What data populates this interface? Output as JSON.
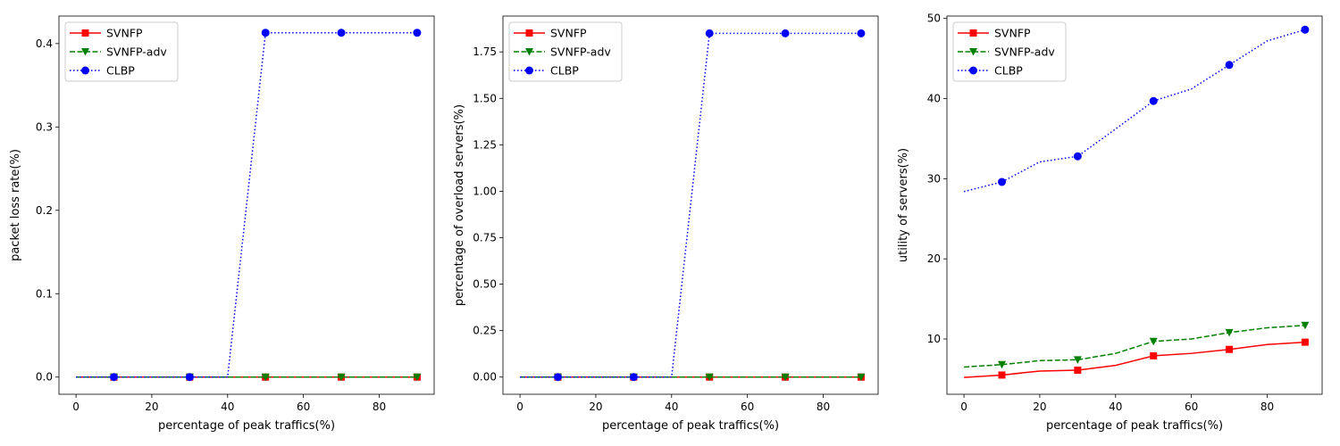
{
  "chart_data": [
    {
      "type": "line",
      "xlabel": "percentage of peak traffics(%)",
      "ylabel": "packet loss rate(%)",
      "xlim": [
        -4.5,
        94.5
      ],
      "ylim": [
        -0.0206,
        0.433
      ],
      "xticks": [
        0,
        20,
        40,
        60,
        80
      ],
      "yticks": [
        0.0,
        0.1,
        0.2,
        0.3,
        0.4
      ],
      "ytick_labels": [
        "0.0",
        "0.1",
        "0.2",
        "0.3",
        "0.4"
      ],
      "legend_position": "top-left",
      "grid": false,
      "series": [
        {
          "name": "SVNFP",
          "color": "#ff0000",
          "dash": "solid",
          "marker": "square",
          "x": [
            0,
            10,
            20,
            30,
            40,
            50,
            60,
            70,
            80,
            90
          ],
          "y": [
            0,
            0,
            0,
            0,
            0,
            0,
            0,
            0,
            0,
            0
          ]
        },
        {
          "name": "SVNFP-adv",
          "color": "#008000",
          "dash": "dashed",
          "marker": "triangle-down",
          "x": [
            0,
            10,
            20,
            30,
            40,
            50,
            60,
            70,
            80,
            90
          ],
          "y": [
            0,
            0,
            0,
            0,
            0,
            0,
            0,
            0,
            0,
            0
          ]
        },
        {
          "name": "CLBP",
          "color": "#0000ff",
          "dash": "dotted",
          "marker": "circle",
          "x": [
            0,
            10,
            20,
            30,
            40,
            50,
            60,
            70,
            80,
            90
          ],
          "y": [
            0,
            0,
            0,
            0,
            0,
            0.413,
            0.413,
            0.413,
            0.413,
            0.413
          ]
        }
      ],
      "marker_x": [
        10,
        30,
        50,
        70,
        90
      ]
    },
    {
      "type": "line",
      "xlabel": "percentage of peak traffics(%)",
      "ylabel": "percentage of overload servers(%)",
      "xlim": [
        -4.5,
        94.5
      ],
      "ylim": [
        -0.0925,
        1.943
      ],
      "xticks": [
        0,
        20,
        40,
        60,
        80
      ],
      "yticks": [
        0.0,
        0.25,
        0.5,
        0.75,
        1.0,
        1.25,
        1.5,
        1.75
      ],
      "ytick_labels": [
        "0.00",
        "0.25",
        "0.50",
        "0.75",
        "1.00",
        "1.25",
        "1.50",
        "1.75"
      ],
      "legend_position": "top-left",
      "grid": false,
      "series": [
        {
          "name": "SVNFP",
          "color": "#ff0000",
          "dash": "solid",
          "marker": "square",
          "x": [
            0,
            10,
            20,
            30,
            40,
            50,
            60,
            70,
            80,
            90
          ],
          "y": [
            0,
            0,
            0,
            0,
            0,
            0,
            0,
            0,
            0,
            0
          ]
        },
        {
          "name": "SVNFP-adv",
          "color": "#008000",
          "dash": "dashed",
          "marker": "triangle-down",
          "x": [
            0,
            10,
            20,
            30,
            40,
            50,
            60,
            70,
            80,
            90
          ],
          "y": [
            0,
            0,
            0,
            0,
            0,
            0,
            0,
            0,
            0,
            0
          ]
        },
        {
          "name": "CLBP",
          "color": "#0000ff",
          "dash": "dotted",
          "marker": "circle",
          "x": [
            0,
            10,
            20,
            30,
            40,
            50,
            60,
            70,
            80,
            90
          ],
          "y": [
            0,
            0,
            0,
            0,
            0,
            1.85,
            1.85,
            1.85,
            1.85,
            1.85
          ]
        }
      ],
      "marker_x": [
        10,
        30,
        50,
        70,
        90
      ]
    },
    {
      "type": "line",
      "xlabel": "percentage of peak traffics(%)",
      "ylabel": "utility of servers(%)",
      "xlim": [
        -4.5,
        94.5
      ],
      "ylim": [
        3.1,
        50.3
      ],
      "xticks": [
        0,
        20,
        40,
        60,
        80
      ],
      "yticks": [
        10,
        20,
        30,
        40,
        50
      ],
      "ytick_labels": [
        "10",
        "20",
        "30",
        "40",
        "50"
      ],
      "legend_position": "top-left",
      "grid": false,
      "series": [
        {
          "name": "SVNFP",
          "color": "#ff0000",
          "dash": "solid",
          "marker": "square",
          "x": [
            0,
            10,
            20,
            30,
            40,
            50,
            60,
            70,
            80,
            90
          ],
          "y": [
            5.2,
            5.5,
            6.0,
            6.1,
            6.7,
            7.9,
            8.2,
            8.7,
            9.3,
            9.6
          ]
        },
        {
          "name": "SVNFP-adv",
          "color": "#008000",
          "dash": "dashed",
          "marker": "triangle-down",
          "x": [
            0,
            10,
            20,
            30,
            40,
            50,
            60,
            70,
            80,
            90
          ],
          "y": [
            6.5,
            6.8,
            7.3,
            7.4,
            8.2,
            9.7,
            10.0,
            10.8,
            11.4,
            11.7
          ]
        },
        {
          "name": "CLBP",
          "color": "#0000ff",
          "dash": "dotted",
          "marker": "circle",
          "x": [
            0,
            10,
            20,
            30,
            40,
            50,
            60,
            70,
            80,
            90
          ],
          "y": [
            28.4,
            29.6,
            32.1,
            32.8,
            36.2,
            39.7,
            41.2,
            44.2,
            47.2,
            48.6
          ]
        }
      ],
      "marker_x": [
        10,
        30,
        50,
        70,
        90
      ]
    }
  ]
}
